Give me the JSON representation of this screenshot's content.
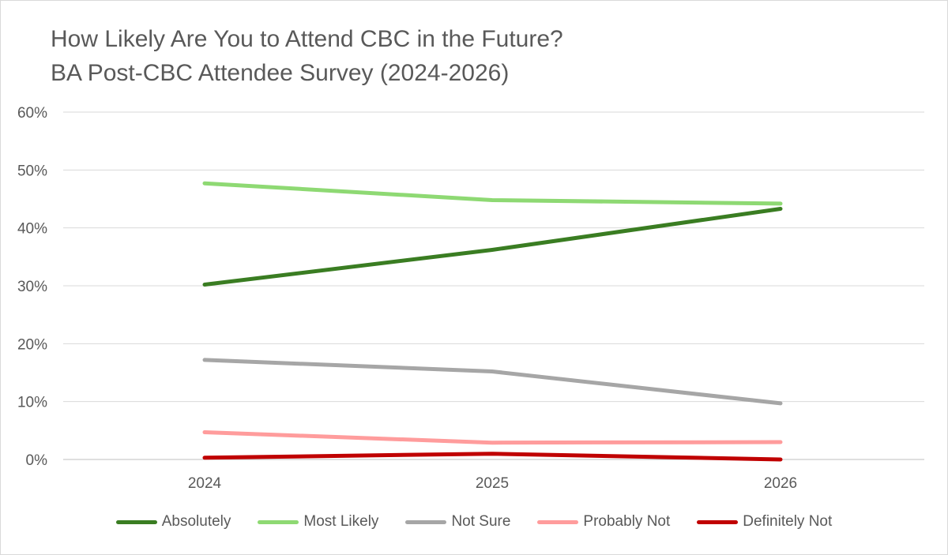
{
  "chart_data": {
    "type": "line",
    "title": "How Likely Are You to Attend CBC in the Future?",
    "subtitle": "BA Post-CBC Attendee Survey (2024-2026)",
    "xlabel": "",
    "ylabel": "",
    "categories": [
      "2024",
      "2025",
      "2026"
    ],
    "ylim": [
      0,
      0.6
    ],
    "y_ticks": [
      "0%",
      "10%",
      "20%",
      "30%",
      "40%",
      "50%",
      "60%"
    ],
    "grid": true,
    "legend_position": "bottom",
    "series": [
      {
        "name": "Absolutely",
        "color": "#3a7d22",
        "values": [
          0.302,
          0.362,
          0.433
        ]
      },
      {
        "name": "Most Likely",
        "color": "#8ed973",
        "values": [
          0.477,
          0.448,
          0.442
        ]
      },
      {
        "name": "Not Sure",
        "color": "#a6a6a6",
        "values": [
          0.172,
          0.152,
          0.097
        ]
      },
      {
        "name": "Probably Not",
        "color": "#ff9c9c",
        "values": [
          0.047,
          0.029,
          0.03
        ]
      },
      {
        "name": "Definitely Not",
        "color": "#c00000",
        "values": [
          0.003,
          0.01,
          0.0
        ]
      }
    ]
  }
}
